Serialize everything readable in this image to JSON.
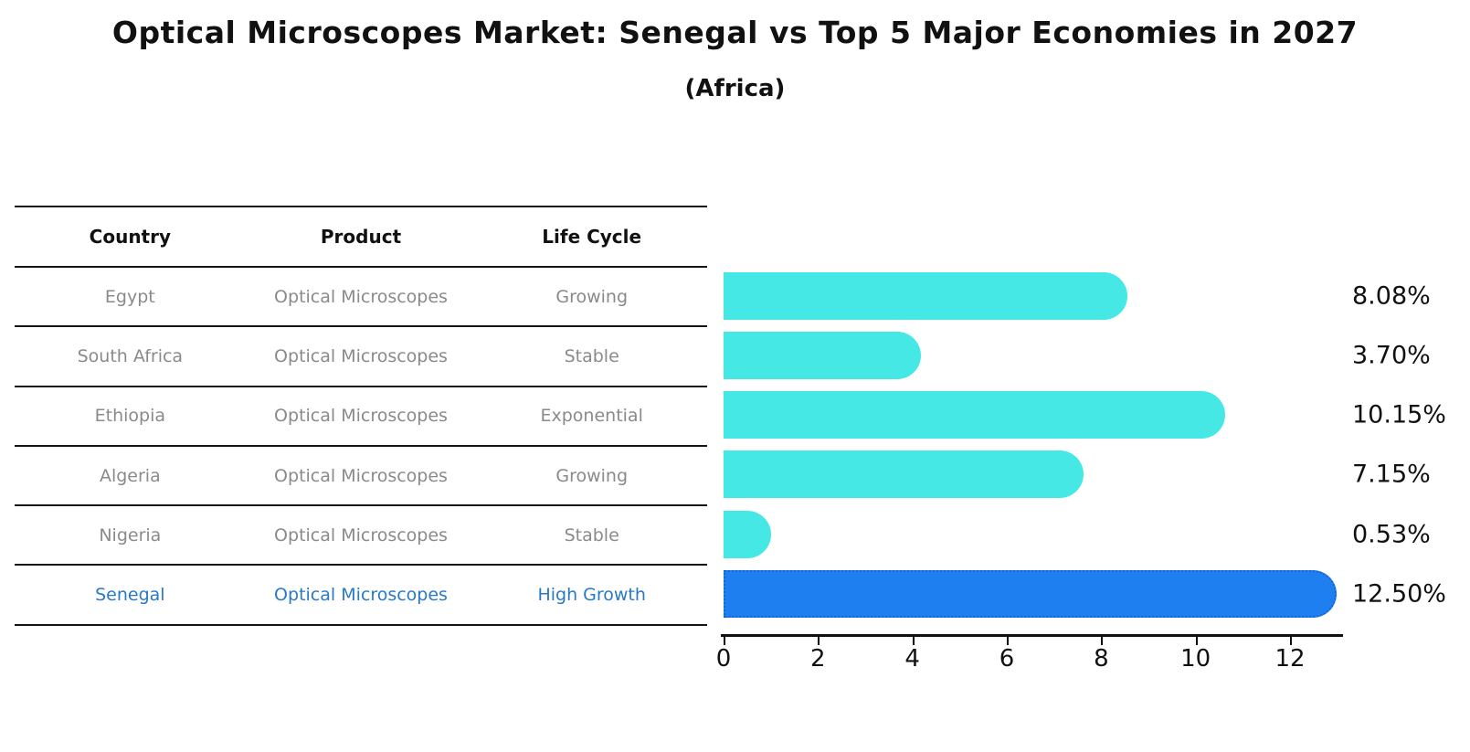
{
  "title": "Optical Microscopes Market: Senegal vs Top 5 Major Economies in 2027",
  "subtitle": "(Africa)",
  "table": {
    "headers": {
      "country": "Country",
      "product": "Product",
      "life_cycle": "Life Cycle"
    },
    "rows": [
      {
        "country": "Egypt",
        "product": "Optical Microscopes",
        "life_cycle": "Growing"
      },
      {
        "country": "South Africa",
        "product": "Optical Microscopes",
        "life_cycle": "Stable"
      },
      {
        "country": "Ethiopia",
        "product": "Optical Microscopes",
        "life_cycle": "Exponential"
      },
      {
        "country": "Algeria",
        "product": "Optical Microscopes",
        "life_cycle": "Growing"
      },
      {
        "country": "Nigeria",
        "product": "Optical Microscopes",
        "life_cycle": "Stable"
      },
      {
        "country": "Senegal",
        "product": "Optical Microscopes",
        "life_cycle": "High Growth"
      }
    ],
    "highlighted_country": "Senegal"
  },
  "chart_data": {
    "type": "bar",
    "orientation": "horizontal",
    "title": "Optical Microscopes Market: Senegal vs Top 5 Major Economies in 2027 (Africa)",
    "categories": [
      "Egypt",
      "South Africa",
      "Ethiopia",
      "Algeria",
      "Nigeria",
      "Senegal"
    ],
    "values": [
      8.08,
      3.7,
      10.15,
      7.15,
      0.53,
      12.5
    ],
    "value_labels": [
      "8.08%",
      "3.70%",
      "10.15%",
      "7.15%",
      "0.53%",
      "12.50%"
    ],
    "highlight_index": 5,
    "x_ticks": [
      0,
      2,
      4,
      6,
      8,
      10,
      12
    ],
    "xlim": [
      0,
      13.1
    ],
    "xlabel": "",
    "ylabel": "",
    "grid": false,
    "legend": "none"
  },
  "colors": {
    "bar": "#45e8e4",
    "highlight_bar": "#1e80f0",
    "highlight_border": "#1565d8",
    "highlight_text": "#2979c9",
    "row_text": "#8a8a8a",
    "header_text": "#111111",
    "axis": "#111111"
  }
}
